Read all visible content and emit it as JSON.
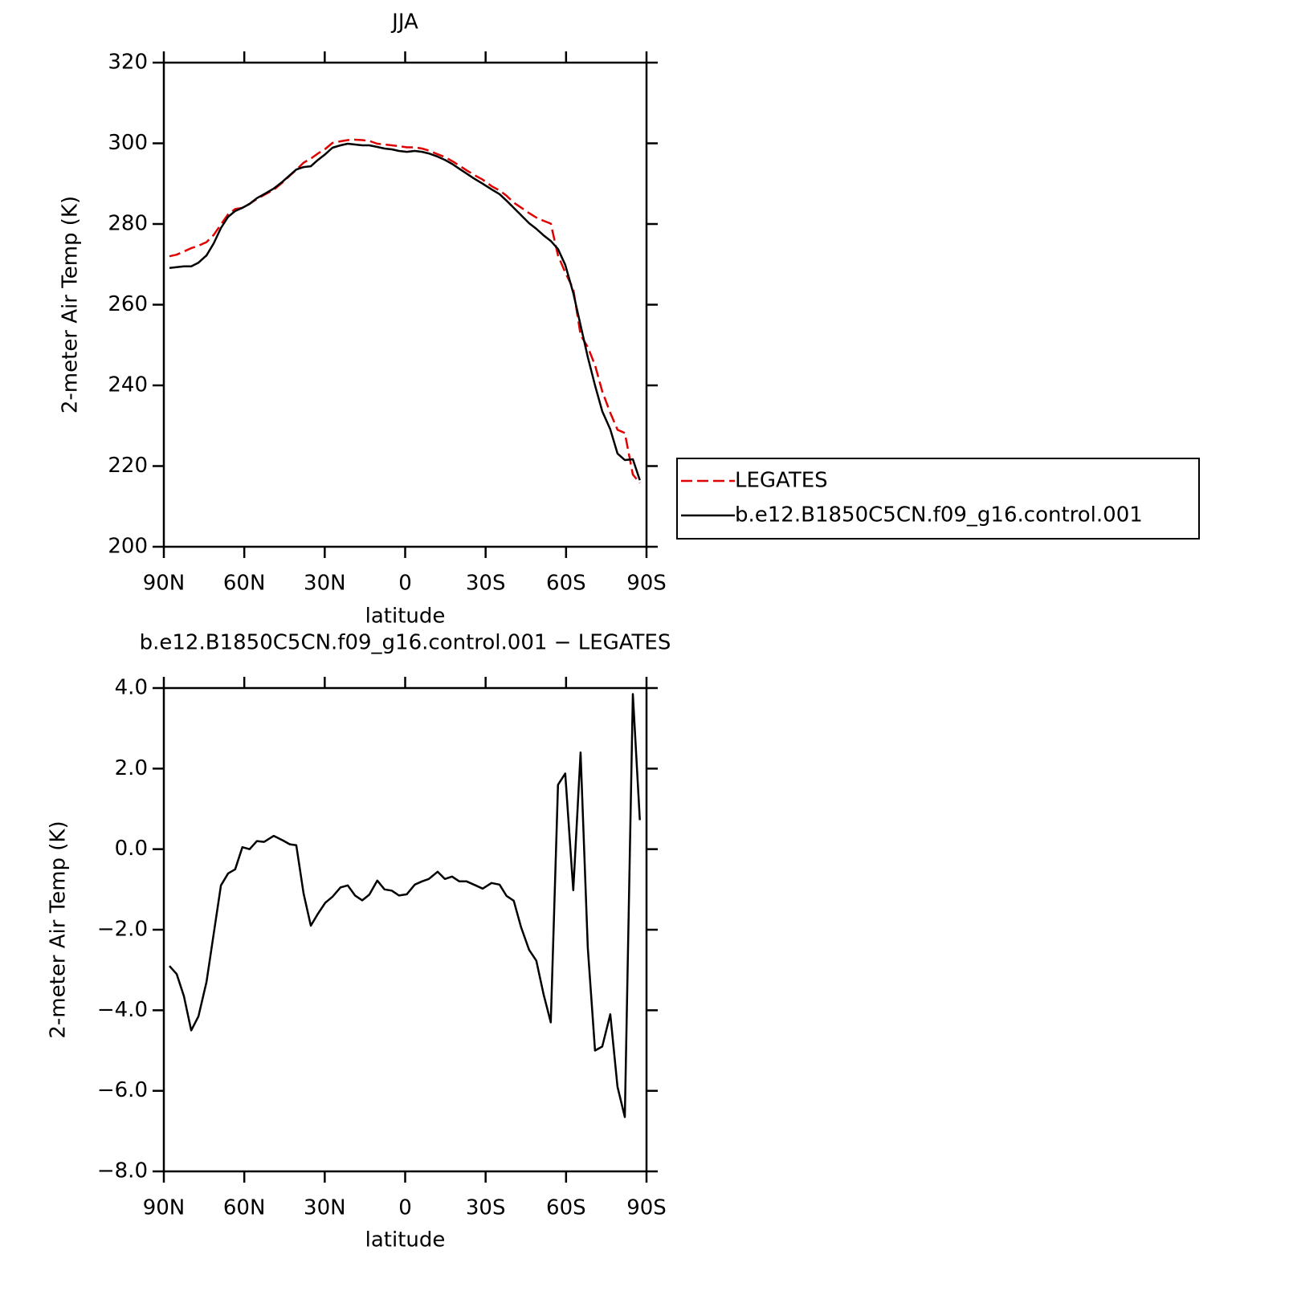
{
  "chart_data": [
    {
      "type": "line",
      "title": "JJA",
      "xlabel": "latitude",
      "ylabel": "2-meter Air Temp (K)",
      "x": [
        87.9,
        85.2,
        82.5,
        79.8,
        77.1,
        74.1,
        71.4,
        68.7,
        66.0,
        63.4,
        60.7,
        58.0,
        55.3,
        52.6,
        49.0,
        45.7,
        43.0,
        40.6,
        37.9,
        35.2,
        32.5,
        29.8,
        27.1,
        24.1,
        21.4,
        18.7,
        16.0,
        13.4,
        10.4,
        7.7,
        5.0,
        2.3,
        -0.6,
        -3.6,
        -6.3,
        -8.8,
        -12.1,
        -14.8,
        -17.5,
        -20.2,
        -22.9,
        -25.6,
        -28.9,
        -32.2,
        -35.2,
        -37.8,
        -40.5,
        -43.2,
        -46.2,
        -48.9,
        -51.6,
        -54.3,
        -57.0,
        -59.7,
        -62.7,
        -65.4,
        -68.1,
        -70.8,
        -73.5,
        -76.5,
        -79.2,
        -81.9,
        -84.9,
        -87.5
      ],
      "series": [
        {
          "name": "LEGATES",
          "color": "#e00000",
          "dashed": true,
          "values": [
            272.0,
            272.4,
            273.2,
            274.0,
            274.6,
            275.5,
            277.3,
            279.9,
            282.4,
            283.7,
            284.0,
            285.0,
            286.2,
            287.2,
            288.5,
            290.3,
            292.0,
            293.4,
            295.2,
            296.2,
            297.5,
            298.6,
            300.1,
            300.5,
            300.8,
            300.9,
            300.8,
            300.6,
            299.9,
            299.7,
            299.5,
            299.3,
            299.0,
            299.0,
            298.7,
            298.2,
            297.3,
            296.6,
            295.6,
            294.5,
            293.3,
            292.2,
            291.0,
            289.4,
            288.3,
            287.0,
            285.3,
            284.1,
            282.7,
            281.6,
            280.8,
            280.1,
            272.2,
            268.0,
            263.9,
            252.5,
            249.5,
            245.0,
            238.5,
            233.2,
            229.0,
            228.2,
            217.9,
            215.8
          ]
        },
        {
          "name": "b.e12.B1850C5CN.f09_g16.control.001",
          "color": "#000000",
          "dashed": false,
          "values": [
            269.1,
            269.3,
            269.5,
            269.5,
            270.4,
            272.2,
            275.2,
            279.0,
            281.8,
            283.2,
            284.0,
            285.0,
            286.4,
            287.4,
            288.8,
            290.5,
            292.1,
            293.5,
            294.1,
            294.3,
            295.9,
            297.3,
            298.9,
            299.5,
            299.9,
            299.7,
            299.5,
            299.5,
            299.1,
            298.7,
            298.5,
            298.1,
            297.9,
            298.1,
            297.9,
            297.5,
            296.7,
            295.9,
            294.9,
            293.7,
            292.5,
            291.3,
            290.0,
            288.6,
            287.4,
            285.8,
            284.0,
            282.2,
            280.2,
            278.8,
            277.2,
            275.8,
            273.8,
            269.9,
            262.9,
            254.9,
            247.0,
            240.0,
            233.6,
            229.1,
            223.1,
            221.5,
            221.7,
            216.5
          ]
        }
      ],
      "xlim": [
        90,
        -90
      ],
      "xticks": [
        {
          "value": 90,
          "label": "90N"
        },
        {
          "value": 60,
          "label": "60N"
        },
        {
          "value": 30,
          "label": "30N"
        },
        0,
        {
          "value": -30,
          "label": "30S"
        },
        {
          "value": -60,
          "label": "60S"
        },
        {
          "value": -90,
          "label": "90S"
        }
      ],
      "ylim": [
        200,
        320
      ],
      "yticks": [
        200,
        220,
        240,
        260,
        280,
        300,
        320
      ],
      "legend": "right"
    },
    {
      "type": "line",
      "title": "b.e12.B1850C5CN.f09_g16.control.001 − LEGATES",
      "xlabel": "latitude",
      "ylabel": "2-meter Air Temp (K)",
      "x": [
        87.9,
        85.2,
        82.5,
        79.8,
        77.1,
        74.1,
        71.4,
        68.7,
        66.0,
        63.4,
        60.7,
        58.0,
        55.3,
        52.6,
        49.0,
        45.7,
        43.0,
        40.6,
        37.9,
        35.2,
        32.5,
        29.8,
        27.1,
        24.1,
        21.4,
        18.7,
        16.0,
        13.4,
        10.4,
        7.7,
        5.0,
        2.3,
        -0.6,
        -3.6,
        -6.3,
        -8.8,
        -12.1,
        -14.8,
        -17.5,
        -20.2,
        -22.9,
        -25.6,
        -28.9,
        -32.2,
        -35.2,
        -37.8,
        -40.5,
        -43.2,
        -46.2,
        -48.9,
        -51.6,
        -54.3,
        -57.0,
        -59.7,
        -62.7,
        -65.4,
        -68.1,
        -70.8,
        -73.5,
        -76.5,
        -79.2,
        -81.9,
        -84.9,
        -87.5
      ],
      "color": "#000000",
      "values": [
        -2.9,
        -3.1,
        -3.65,
        -4.5,
        -4.15,
        -3.3,
        -2.1,
        -0.9,
        -0.6,
        -0.5,
        0.05,
        0.0,
        0.2,
        0.18,
        0.33,
        0.22,
        0.12,
        0.1,
        -1.1,
        -1.9,
        -1.6,
        -1.33,
        -1.18,
        -0.95,
        -0.9,
        -1.15,
        -1.27,
        -1.13,
        -0.78,
        -1.0,
        -1.03,
        -1.15,
        -1.12,
        -0.88,
        -0.8,
        -0.74,
        -0.56,
        -0.74,
        -0.68,
        -0.8,
        -0.8,
        -0.88,
        -0.98,
        -0.84,
        -0.88,
        -1.16,
        -1.28,
        -1.93,
        -2.5,
        -2.77,
        -3.6,
        -4.3,
        1.6,
        1.88,
        -1.02,
        2.4,
        -2.45,
        -5.0,
        -4.9,
        -4.1,
        -5.9,
        -6.65,
        3.85,
        0.72
      ],
      "xlim": [
        90,
        -90
      ],
      "xticks": [
        {
          "value": 90,
          "label": "90N"
        },
        {
          "value": 60,
          "label": "60N"
        },
        {
          "value": 30,
          "label": "30N"
        },
        0,
        {
          "value": -30,
          "label": "30S"
        },
        {
          "value": -60,
          "label": "60S"
        },
        {
          "value": -90,
          "label": "90S"
        }
      ],
      "ylim": [
        -8,
        4
      ],
      "yticks": [
        {
          "value": -8,
          "label": "−8.0"
        },
        {
          "value": -6,
          "label": "−6.0"
        },
        {
          "value": -4,
          "label": "−4.0"
        },
        {
          "value": -2,
          "label": "−2.0"
        },
        {
          "value": 0,
          "label": "0.0"
        },
        {
          "value": 2,
          "label": "2.0"
        },
        {
          "value": 4,
          "label": "4.0"
        }
      ]
    }
  ]
}
